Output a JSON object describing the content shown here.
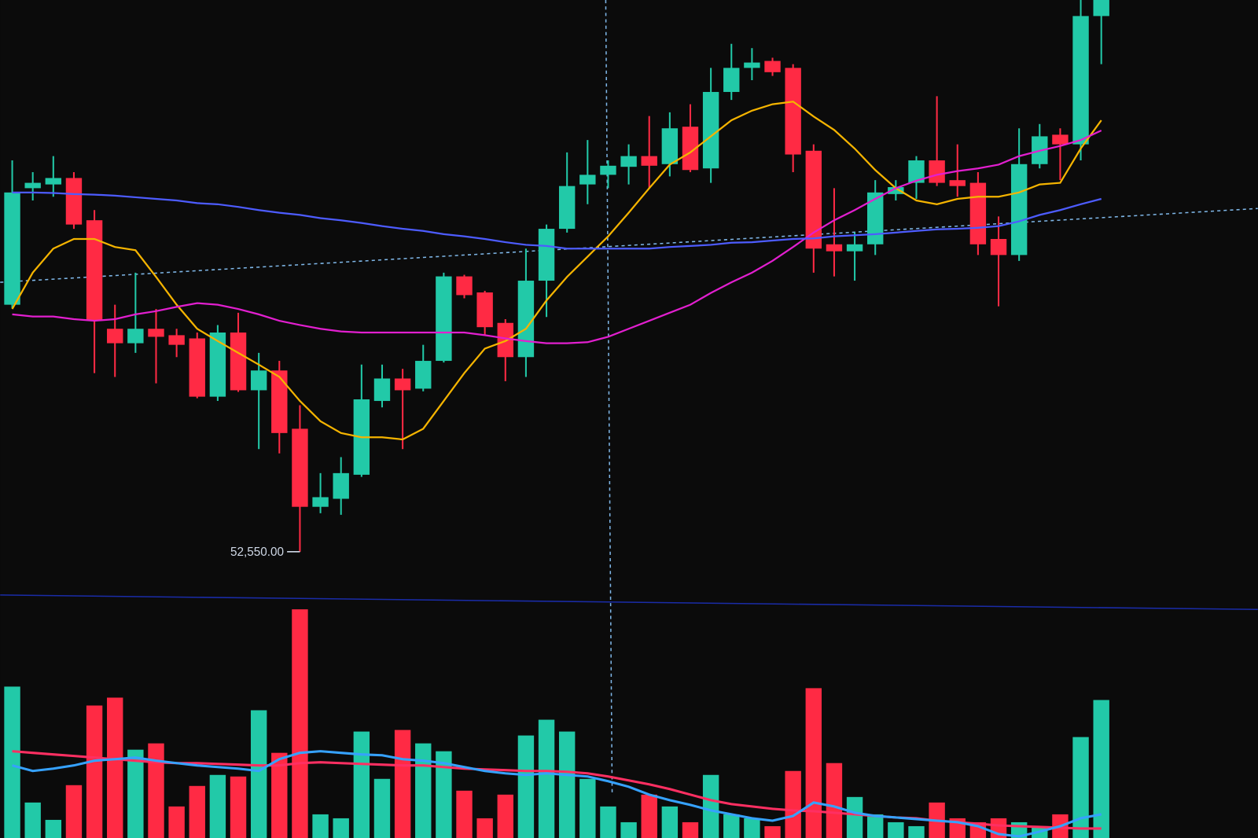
{
  "chart_data": {
    "type": "candlestick",
    "ylim": [
      52160,
      57710
    ],
    "up_color": "#22c9a8",
    "down_color": "#ff2a44",
    "open": [
      54860,
      55950,
      55985,
      56045,
      55650,
      54635,
      54500,
      54635,
      54575,
      54545,
      54000,
      54600,
      54060,
      54245,
      53700,
      52970,
      53045,
      53270,
      53960,
      54170,
      54075,
      54335,
      55125,
      54975,
      54690,
      54370,
      55085,
      55570,
      55985,
      56075,
      56150,
      56250,
      56175,
      56525,
      56135,
      56850,
      57075,
      57140,
      57075,
      56300,
      55425,
      55360,
      55425,
      55895,
      56000,
      56210,
      56025,
      56000,
      55475,
      55325,
      56175,
      56450,
      56360,
      57560
    ],
    "high": [
      56210,
      56100,
      56250,
      56100,
      55745,
      54860,
      55160,
      54820,
      54635,
      54600,
      54670,
      54785,
      54410,
      54335,
      53920,
      53285,
      53435,
      54300,
      54300,
      54260,
      54485,
      55160,
      55140,
      54990,
      54725,
      55385,
      55610,
      56285,
      56400,
      56210,
      56360,
      56625,
      56660,
      56735,
      57075,
      57300,
      57260,
      57170,
      57110,
      56360,
      55950,
      55535,
      56025,
      56025,
      56250,
      56810,
      56360,
      56100,
      55685,
      56510,
      56550,
      56510,
      57710,
      57710
    ],
    "low": [
      54825,
      55835,
      55870,
      55570,
      54220,
      54185,
      54410,
      54125,
      54370,
      53985,
      53960,
      54045,
      53510,
      53470,
      52550,
      52910,
      52895,
      53250,
      53900,
      53510,
      54050,
      54320,
      54920,
      54575,
      54145,
      54185,
      54745,
      55535,
      55800,
      55950,
      55985,
      55950,
      56060,
      56100,
      56000,
      56775,
      56960,
      57000,
      56100,
      55160,
      55125,
      55085,
      55325,
      55835,
      55850,
      55970,
      55870,
      55325,
      54845,
      55270,
      56135,
      56025,
      56210,
      57110
    ],
    "close": [
      55910,
      56000,
      56045,
      55610,
      54710,
      54500,
      54635,
      54560,
      54485,
      54000,
      54600,
      54060,
      54245,
      53660,
      52970,
      53060,
      53285,
      53975,
      54170,
      54060,
      54335,
      55125,
      54950,
      54650,
      54370,
      55085,
      55570,
      55970,
      56075,
      56160,
      56250,
      56160,
      56510,
      56120,
      56850,
      57075,
      57125,
      57035,
      56265,
      55385,
      55360,
      55425,
      55910,
      55960,
      56210,
      56000,
      55970,
      55425,
      55325,
      56175,
      56435,
      56360,
      57560,
      57710
    ],
    "overlays": [
      {
        "color": "#f5b400",
        "values": [
          54820,
          55160,
          55385,
          55475,
          55475,
          55400,
          55370,
          55120,
          54860,
          54635,
          54520,
          54410,
          54300,
          54185,
          53960,
          53770,
          53660,
          53620,
          53620,
          53600,
          53700,
          53960,
          54220,
          54450,
          54520,
          54635,
          54900,
          55120,
          55310,
          55500,
          55720,
          55950,
          56170,
          56285,
          56435,
          56585,
          56675,
          56735,
          56760,
          56620,
          56495,
          56320,
          56120,
          55950,
          55835,
          55800,
          55850,
          55870,
          55870,
          55910,
          55985,
          56000,
          56320,
          56585
        ]
      },
      {
        "color": "#e21fcf",
        "values": [
          54770,
          54750,
          54750,
          54725,
          54710,
          54725,
          54770,
          54800,
          54840,
          54875,
          54860,
          54820,
          54770,
          54710,
          54670,
          54635,
          54610,
          54600,
          54600,
          54600,
          54600,
          54600,
          54600,
          54575,
          54545,
          54520,
          54500,
          54500,
          54510,
          54560,
          54635,
          54710,
          54785,
          54860,
          54970,
          55070,
          55160,
          55270,
          55400,
          55535,
          55650,
          55745,
          55850,
          55950,
          56020,
          56075,
          56110,
          56135,
          56170,
          56250,
          56300,
          56345,
          56400,
          56490
        ]
      },
      {
        "color": "#4d5cff",
        "values": [
          55910,
          55910,
          55905,
          55895,
          55890,
          55880,
          55865,
          55850,
          55835,
          55810,
          55800,
          55775,
          55745,
          55720,
          55700,
          55670,
          55650,
          55625,
          55595,
          55570,
          55550,
          55520,
          55500,
          55475,
          55445,
          55420,
          55410,
          55385,
          55385,
          55385,
          55385,
          55385,
          55400,
          55410,
          55420,
          55440,
          55445,
          55460,
          55475,
          55480,
          55500,
          55510,
          55520,
          55535,
          55550,
          55565,
          55570,
          55580,
          55595,
          55640,
          55700,
          55745,
          55800,
          55850
        ]
      }
    ],
    "volume": {
      "ylim": [
        0,
        300
      ],
      "values": [
        192,
        45,
        23,
        67,
        168,
        178,
        112,
        120,
        40,
        66,
        80,
        78,
        162,
        108,
        290,
        30,
        25,
        135,
        75,
        137,
        120,
        110,
        60,
        25,
        55,
        130,
        150,
        135,
        75,
        40,
        20,
        55,
        40,
        20,
        80,
        30,
        25,
        15,
        85,
        190,
        95,
        52,
        30,
        20,
        15,
        45,
        25,
        20,
        25,
        20,
        15,
        30,
        128,
        175
      ],
      "overlays": [
        {
          "color": "#ff2f62",
          "values": [
            110,
            108,
            106,
            104,
            102,
            100,
            98,
            96,
            95,
            95,
            94,
            93,
            92,
            92,
            95,
            96,
            95,
            94,
            93,
            92,
            92,
            90,
            88,
            87,
            86,
            85,
            85,
            84,
            82,
            78,
            73,
            68,
            62,
            55,
            48,
            43,
            40,
            37,
            35,
            34,
            32,
            30,
            28,
            26,
            25,
            22,
            20,
            18,
            16,
            15,
            14,
            13,
            12,
            12
          ]
        },
        {
          "color": "#36a2ff",
          "values": [
            92,
            85,
            88,
            92,
            98,
            100,
            102,
            98,
            95,
            92,
            90,
            88,
            85,
            100,
            108,
            110,
            108,
            106,
            105,
            100,
            98,
            95,
            90,
            85,
            82,
            80,
            82,
            80,
            78,
            72,
            65,
            55,
            48,
            42,
            35,
            30,
            25,
            22,
            28,
            45,
            40,
            32,
            28,
            26,
            24,
            22,
            20,
            15,
            5,
            2,
            8,
            15,
            25,
            30
          ]
        }
      ]
    },
    "low_marker": {
      "value": 52550,
      "label": "52,550.00"
    }
  }
}
